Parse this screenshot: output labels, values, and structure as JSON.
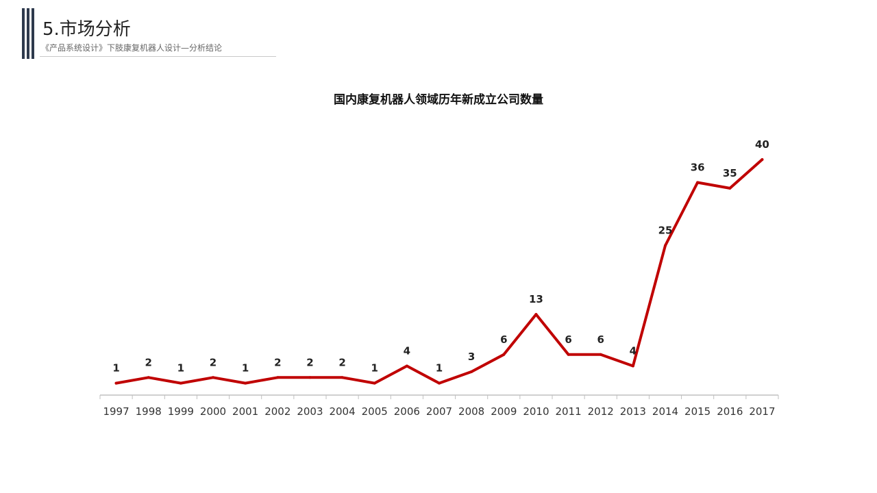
{
  "header": {
    "title": "5.市场分析",
    "subtitle": "《产品系统设计》下肢康复机器人设计—分析结论"
  },
  "colors": {
    "accent_bar": "#2e3a4d",
    "line": "#c00000",
    "axis": "#bfbfbf"
  },
  "chart_data": {
    "type": "line",
    "title": "国内康复机器人领域历年新成立公司数量",
    "categories": [
      "1997",
      "1998",
      "1999",
      "2000",
      "2001",
      "2002",
      "2003",
      "2004",
      "2005",
      "2006",
      "2007",
      "2008",
      "2009",
      "2010",
      "2011",
      "2012",
      "2013",
      "2014",
      "2015",
      "2016",
      "2017"
    ],
    "series": [
      {
        "values": [
          1,
          2,
          1,
          2,
          1,
          2,
          2,
          2,
          1,
          4,
          1,
          3,
          6,
          13,
          6,
          6,
          4,
          25,
          36,
          35,
          40
        ]
      }
    ],
    "data_labels": [
      "1",
      "2",
      "1",
      "2",
      "1",
      "2",
      "2",
      "2",
      "1",
      "4",
      "1",
      "3",
      "6",
      "13",
      "6",
      "6",
      "4",
      "25",
      "36",
      "35",
      "40"
    ],
    "ylim": [
      0,
      40
    ],
    "grid": false,
    "legend": "none"
  }
}
